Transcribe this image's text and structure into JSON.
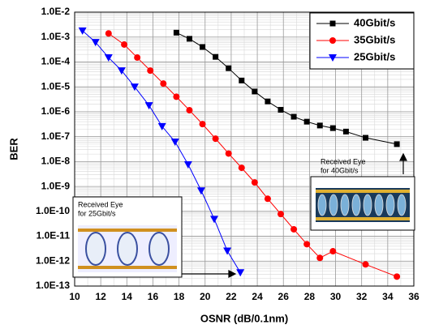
{
  "chart_data": {
    "type": "line",
    "x_label": "OSNR (dB/0.1nm)",
    "y_label": "BER",
    "log_y": true,
    "grid": true,
    "legend": "upper right",
    "xlim": [
      10,
      36
    ],
    "xticks": [
      10,
      12,
      14,
      16,
      18,
      20,
      22,
      24,
      26,
      28,
      30,
      32,
      34,
      36
    ],
    "ylim": [
      1e-13,
      0.01
    ],
    "yticks": [
      {
        "value": 1e-13,
        "label": "1.0E-13"
      },
      {
        "value": 1e-12,
        "label": "1.0E-12"
      },
      {
        "value": 1e-11,
        "label": "1.0E-11"
      },
      {
        "value": 1e-10,
        "label": "1.0E-10"
      },
      {
        "value": 1e-09,
        "label": "1.0E-9"
      },
      {
        "value": 1e-08,
        "label": "1.0E-8"
      },
      {
        "value": 1e-07,
        "label": "1.0E-7"
      },
      {
        "value": 1e-06,
        "label": "1.0E-6"
      },
      {
        "value": 1e-05,
        "label": "1.0E-5"
      },
      {
        "value": 0.0001,
        "label": "1.0E-4"
      },
      {
        "value": 0.001,
        "label": "1.0E-3"
      },
      {
        "value": 0.01,
        "label": "1.0E-2"
      }
    ],
    "series": [
      {
        "name": "40Gbit/s",
        "color": "#000000",
        "marker": "square",
        "x": [
          17.8,
          18.8,
          19.8,
          20.8,
          21.8,
          22.8,
          23.8,
          24.8,
          25.8,
          26.8,
          27.8,
          28.8,
          29.8,
          30.8,
          32.3,
          34.7
        ],
        "values": [
          0.0015,
          0.00085,
          0.0004,
          0.00016,
          5.6e-05,
          1.8e-05,
          6.5e-06,
          2.6e-06,
          1.2e-06,
          6.3e-07,
          4e-07,
          2.8e-07,
          2.2e-07,
          1.6e-07,
          9e-08,
          5e-08
        ]
      },
      {
        "name": "35Gbit/s",
        "color": "#ff0000",
        "marker": "circle",
        "x": [
          12.6,
          13.8,
          14.8,
          15.8,
          16.8,
          17.8,
          18.8,
          19.8,
          20.8,
          21.8,
          22.8,
          23.8,
          24.8,
          25.8,
          26.8,
          27.8,
          28.8,
          29.8,
          32.3,
          34.7
        ],
        "values": [
          0.0014,
          0.0005,
          0.00015,
          4.5e-05,
          1.35e-05,
          4e-06,
          1.15e-06,
          3.2e-07,
          8.3e-08,
          2.1e-08,
          5.6e-09,
          1.45e-09,
          3.2e-10,
          7.8e-11,
          1.9e-11,
          4.8e-12,
          1.35e-12,
          2.5e-12,
          7.4e-13,
          2.4e-13
        ]
      },
      {
        "name": "25Gbit/s",
        "color": "#0000ff",
        "marker": "triangle-down",
        "x": [
          10.6,
          11.6,
          12.6,
          13.6,
          14.6,
          15.7,
          16.7,
          17.7,
          18.7,
          19.7,
          20.7,
          21.7,
          22.7
        ],
        "values": [
          0.0018,
          0.00062,
          0.00015,
          4.5e-05,
          1e-05,
          1.8e-06,
          2.6e-07,
          6.2e-08,
          7.6e-09,
          6.8e-10,
          4.9e-11,
          2.6e-12,
          3.5e-13
        ]
      }
    ],
    "annotations": [
      [
        "Received Eye",
        "for 40Gbit/s"
      ],
      [
        "Received Eye",
        "for 25Gbit/s"
      ]
    ]
  }
}
